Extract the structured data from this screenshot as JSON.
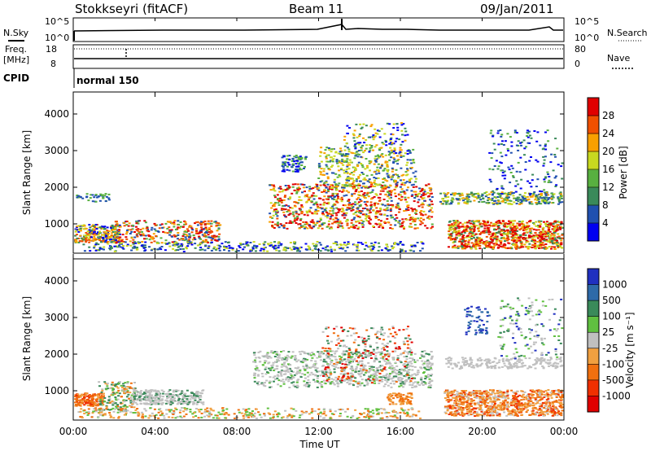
{
  "header": {
    "station": "Stokkseyri (fitACF)",
    "beam": "Beam 11",
    "date": "09/Jan/2011"
  },
  "status_panel": {
    "nsky_label": "N.Sky",
    "nsearch_label": "N.Search",
    "left_ticks": [
      "10^5",
      "10^0"
    ],
    "right_ticks": [
      "10^5",
      "10^0"
    ],
    "freq_label_1": "Freq.",
    "freq_label_2": "[MHz]",
    "freq_ticks": [
      "18",
      "8"
    ],
    "nave_label": "Nave",
    "nave_ticks": [
      "80",
      "0"
    ],
    "cpid_label": "CPID",
    "cpid_value": "normal 150"
  },
  "chart_data": [
    {
      "type": "heatmap",
      "name": "power",
      "ylabel": "Slant Range [km]",
      "ylim": [
        200,
        4600
      ],
      "yticks": [
        "1000",
        "2000",
        "3000",
        "4000"
      ],
      "colorbar_label": "Power [dB]",
      "colorbar_ticks": [
        "4",
        "8",
        "12",
        "16",
        "20",
        "24",
        "28"
      ],
      "colorbar_colors": [
        "#0000f0",
        "#2050b0",
        "#3a8a5a",
        "#58b040",
        "#c8d820",
        "#f8a000",
        "#f05000",
        "#e00000"
      ]
    },
    {
      "type": "heatmap",
      "name": "velocity",
      "ylabel": "Slant Range [km]",
      "ylim": [
        200,
        4600
      ],
      "yticks": [
        "1000",
        "2000",
        "3000",
        "4000"
      ],
      "colorbar_label": "Velocity [m s⁻¹]",
      "colorbar_ticks": [
        "1000",
        "500",
        "100",
        "25",
        "-25",
        "-100",
        "-500",
        "-1000"
      ],
      "colorbar_colors": [
        "#2030c0",
        "#2e6aa8",
        "#3a8a5a",
        "#60c040",
        "#c0c0c0",
        "#f0a040",
        "#f07010",
        "#f03000",
        "#e00000"
      ]
    }
  ],
  "xaxis": {
    "label": "Time UT",
    "ticks": [
      "00:00",
      "04:00",
      "08:00",
      "12:00",
      "16:00",
      "20:00",
      "00:00"
    ]
  }
}
